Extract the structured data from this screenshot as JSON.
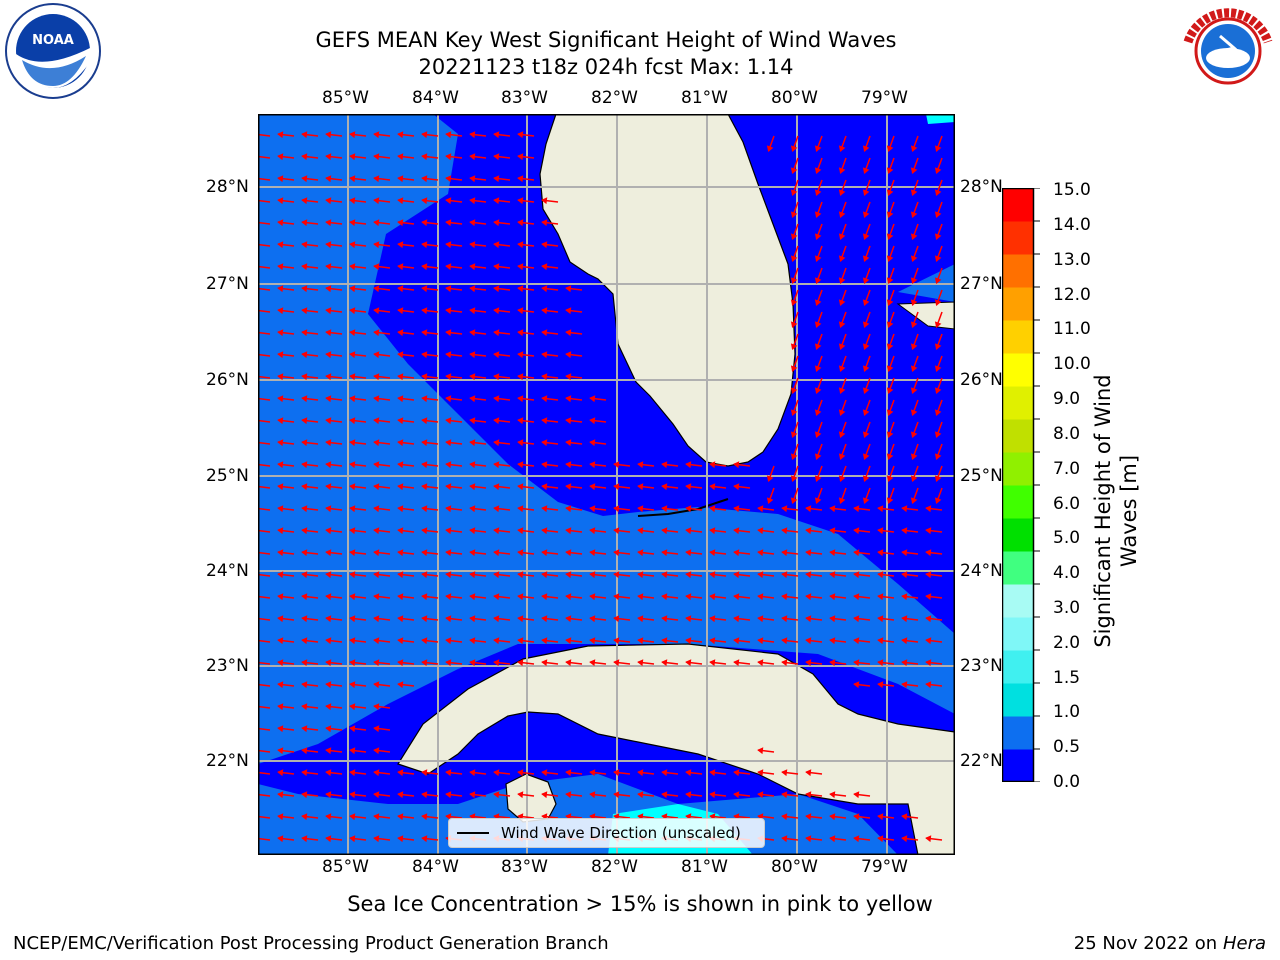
{
  "title_line1": "GEFS MEAN Key West Significant Height of Wind Waves",
  "title_line2": "20221123 t18z 024h fcst   Max: 1.14",
  "lon_labels": [
    "85°W",
    "84°W",
    "83°W",
    "82°W",
    "81°W",
    "80°W",
    "79°W"
  ],
  "lat_labels": [
    "28°N",
    "27°N",
    "26°N",
    "25°N",
    "24°N",
    "23°N",
    "22°N"
  ],
  "colorbar": {
    "label": "Significant Height of Wind Waves [m]",
    "ticks": [
      "15.0",
      "14.0",
      "13.0",
      "12.0",
      "11.0",
      "10.0",
      "9.0",
      "8.0",
      "7.0",
      "6.0",
      "5.0",
      "4.0",
      "3.0",
      "2.0",
      "1.5",
      "1.0",
      "0.5",
      "0.0"
    ],
    "colors": [
      "#0000ff",
      "#0d6ff0",
      "#00e0e0",
      "#40f0f0",
      "#7ff7f7",
      "#a8fbf4",
      "#40ff80",
      "#00e000",
      "#40ff00",
      "#90f000",
      "#c0e000",
      "#e0f000",
      "#ffff00",
      "#ffd000",
      "#ffa000",
      "#ff7000",
      "#ff3000",
      "#ff0000"
    ]
  },
  "legend_label": "Wind Wave Direction (unscaled)",
  "footer_note": "Sea Ice Concentration > 15% is shown in pink to yellow",
  "credit_left": "NCEP/EMC/Verification Post Processing Product Generation Branch",
  "credit_right_date": "25 Nov 2022 on",
  "credit_right_host": "Hera",
  "logos": {
    "noaa_text": "NOAA",
    "nws_text": "NATIONAL WEATHER SERVICE"
  },
  "map_colors": {
    "deep_blue": "#0000ff",
    "mid_blue": "#0d6ff0",
    "cyan": "#00ffff",
    "land": "#eeeedd",
    "arrow": "#ff0000",
    "grid": "#b0b0b0"
  },
  "chart_data": {
    "type": "heatmap",
    "variable": "Significant Height of Wind Waves",
    "unit": "m",
    "max_value": 1.14,
    "extent": {
      "lon": [
        -86.0,
        -78.3
      ],
      "lat": [
        21.0,
        28.8
      ]
    },
    "contour_levels": [
      0.0,
      0.5,
      1.0,
      1.5,
      2.0,
      3.0,
      4.0,
      5.0,
      6.0,
      7.0,
      8.0,
      9.0,
      10.0,
      11.0,
      12.0,
      13.0,
      14.0,
      15.0
    ],
    "vector_field": "wind wave direction (unscaled), predominantly from east / northeast",
    "grid": true
  }
}
